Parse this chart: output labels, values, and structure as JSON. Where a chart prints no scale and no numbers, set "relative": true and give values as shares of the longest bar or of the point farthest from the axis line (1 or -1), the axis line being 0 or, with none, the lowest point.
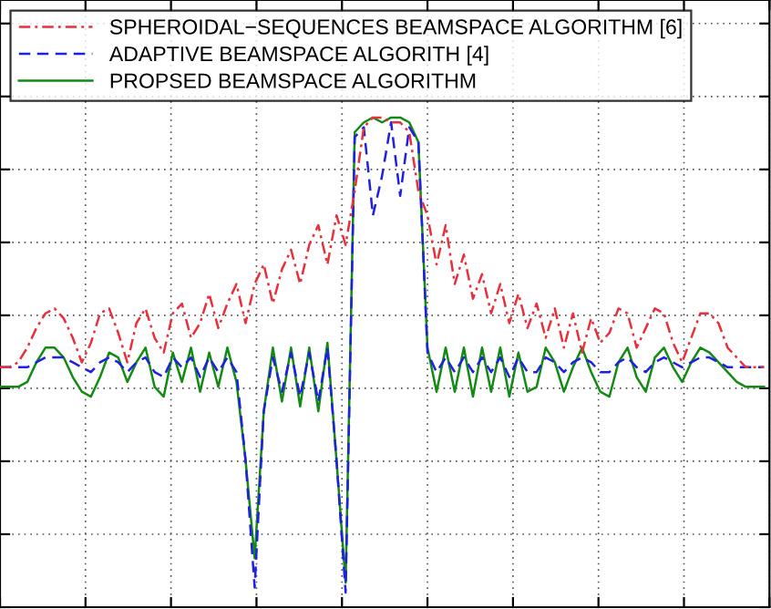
{
  "chart_data": {
    "type": "line",
    "relative": true,
    "grid": true,
    "legend": "top left",
    "tick_labels": false,
    "categories": [
      null,
      null,
      null,
      null,
      null,
      null,
      null,
      null,
      null,
      null,
      null,
      null,
      null,
      null,
      null,
      null,
      null,
      null,
      null,
      null,
      null,
      null,
      null,
      null,
      null,
      null,
      null,
      null,
      null,
      null,
      null,
      null,
      null,
      null,
      null,
      null,
      null,
      null,
      null,
      null,
      null,
      null,
      null,
      null,
      null,
      null,
      null,
      null,
      null,
      null,
      null,
      null,
      null,
      null,
      null,
      null,
      null,
      null,
      null,
      null,
      null,
      null,
      null,
      null,
      null,
      null,
      null,
      null,
      null,
      null,
      null,
      null,
      null,
      null,
      null,
      null,
      null,
      null,
      null,
      null,
      null,
      null,
      null,
      null,
      null
    ],
    "series": [
      {
        "name": "SPHEROIDAL−SEQUENCES BEAMSPACE ALGORITHM [6]",
        "color": "#e8303c",
        "line_style": "dashdot",
        "values": [
          0.49,
          0.49,
          0.5,
          0.53,
          0.57,
          0.6,
          0.61,
          0.59,
          0.55,
          0.5,
          0.54,
          0.6,
          0.61,
          0.56,
          0.5,
          0.58,
          0.61,
          0.55,
          0.52,
          0.6,
          0.62,
          0.55,
          0.58,
          0.64,
          0.57,
          0.62,
          0.66,
          0.58,
          0.66,
          0.7,
          0.62,
          0.69,
          0.73,
          0.66,
          0.74,
          0.78,
          0.7,
          0.8,
          0.74,
          0.85,
          0.98,
          1.0,
          1.0,
          0.99,
          0.99,
          0.97,
          0.85,
          0.8,
          0.7,
          0.78,
          0.66,
          0.72,
          0.63,
          0.68,
          0.6,
          0.66,
          0.58,
          0.64,
          0.57,
          0.62,
          0.55,
          0.61,
          0.53,
          0.6,
          0.52,
          0.59,
          0.54,
          0.56,
          0.61,
          0.6,
          0.53,
          0.57,
          0.61,
          0.6,
          0.54,
          0.5,
          0.55,
          0.6,
          0.6,
          0.58,
          0.53,
          0.51,
          0.49,
          0.49,
          0.49
        ]
      },
      {
        "name": "ADAPTIVE BEAMSPACE ALGORITH [4]",
        "color": "#2020e0",
        "line_style": "dashed",
        "values": [
          0.49,
          0.49,
          0.49,
          0.49,
          0.5,
          0.51,
          0.51,
          0.51,
          0.5,
          0.49,
          0.48,
          0.5,
          0.51,
          0.5,
          0.48,
          0.5,
          0.51,
          0.48,
          0.47,
          0.51,
          0.49,
          0.51,
          0.47,
          0.51,
          0.48,
          0.51,
          0.48,
          0.3,
          0.04,
          0.4,
          0.51,
          0.44,
          0.52,
          0.43,
          0.52,
          0.42,
          0.53,
          0.3,
          0.03,
          0.96,
          0.98,
          0.8,
          0.88,
          0.99,
          0.84,
          0.98,
          0.95,
          0.52,
          0.48,
          0.51,
          0.48,
          0.51,
          0.48,
          0.51,
          0.48,
          0.51,
          0.47,
          0.51,
          0.48,
          0.48,
          0.51,
          0.5,
          0.48,
          0.5,
          0.51,
          0.5,
          0.48,
          0.48,
          0.5,
          0.51,
          0.49,
          0.48,
          0.5,
          0.51,
          0.5,
          0.49,
          0.5,
          0.51,
          0.51,
          0.5,
          0.49,
          0.49,
          0.49,
          0.49,
          0.49
        ]
      },
      {
        "name": "PROPSED BEAMSPACE ALGORITHM",
        "color": "#138a13",
        "line_style": "solid",
        "values": [
          0.45,
          0.45,
          0.45,
          0.46,
          0.5,
          0.53,
          0.53,
          0.51,
          0.47,
          0.44,
          0.43,
          0.47,
          0.52,
          0.51,
          0.46,
          0.5,
          0.53,
          0.45,
          0.43,
          0.52,
          0.46,
          0.53,
          0.44,
          0.52,
          0.45,
          0.53,
          0.46,
          0.3,
          0.1,
          0.4,
          0.53,
          0.42,
          0.53,
          0.41,
          0.53,
          0.4,
          0.54,
          0.3,
          0.05,
          0.97,
          0.99,
          1.0,
          0.99,
          1.0,
          1.0,
          0.99,
          0.95,
          0.53,
          0.44,
          0.53,
          0.44,
          0.53,
          0.43,
          0.53,
          0.44,
          0.53,
          0.43,
          0.52,
          0.44,
          0.45,
          0.53,
          0.5,
          0.44,
          0.49,
          0.53,
          0.48,
          0.44,
          0.43,
          0.5,
          0.53,
          0.47,
          0.44,
          0.51,
          0.53,
          0.49,
          0.46,
          0.5,
          0.53,
          0.52,
          0.5,
          0.48,
          0.46,
          0.45,
          0.45,
          0.45
        ]
      }
    ]
  }
}
